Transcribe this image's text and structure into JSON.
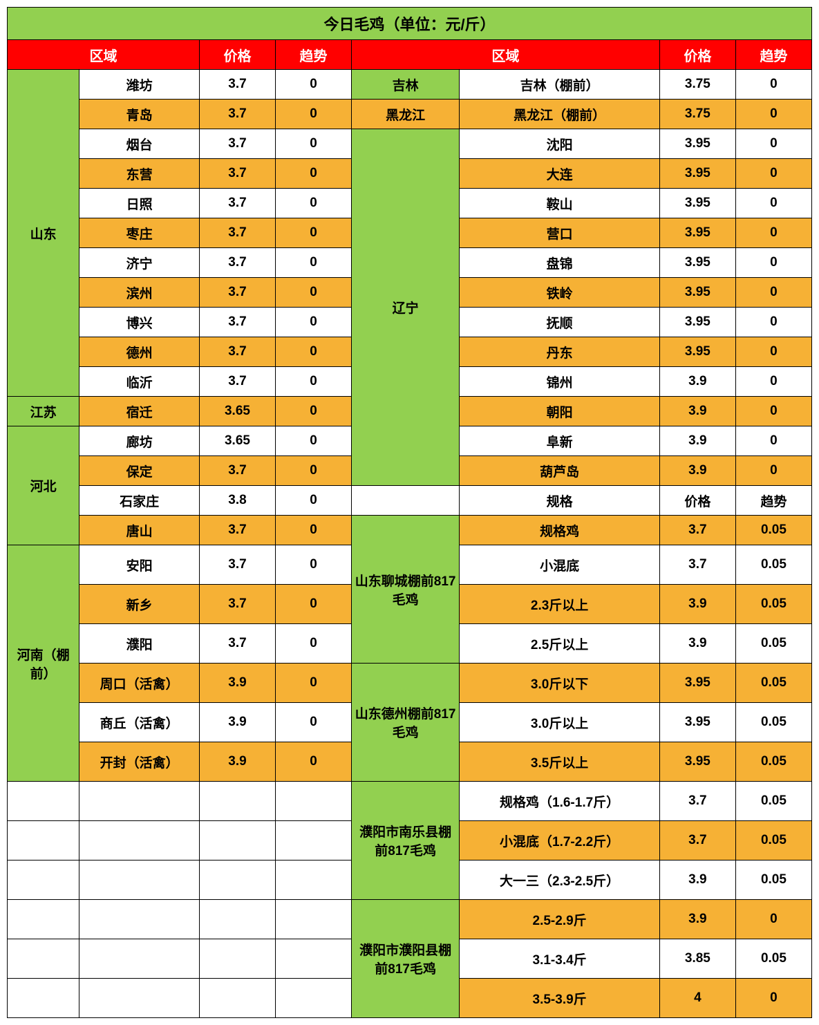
{
  "title": "今日毛鸡（单位：元/斤）",
  "headers": {
    "region": "区域",
    "price": "价格",
    "trend": "趋势",
    "spec": "规格"
  },
  "left_groups": [
    {
      "region": "山东",
      "rows": [
        {
          "city": "潍坊",
          "price": "3.7",
          "trend": "0",
          "shade": "white"
        },
        {
          "city": "青岛",
          "price": "3.7",
          "trend": "0",
          "shade": "orange"
        },
        {
          "city": "烟台",
          "price": "3.7",
          "trend": "0",
          "shade": "white"
        },
        {
          "city": "东营",
          "price": "3.7",
          "trend": "0",
          "shade": "orange"
        },
        {
          "city": "日照",
          "price": "3.7",
          "trend": "0",
          "shade": "white"
        },
        {
          "city": "枣庄",
          "price": "3.7",
          "trend": "0",
          "shade": "orange"
        },
        {
          "city": "济宁",
          "price": "3.7",
          "trend": "0",
          "shade": "white"
        },
        {
          "city": "滨州",
          "price": "3.7",
          "trend": "0",
          "shade": "orange"
        },
        {
          "city": "博兴",
          "price": "3.7",
          "trend": "0",
          "shade": "white"
        },
        {
          "city": "德州",
          "price": "3.7",
          "trend": "0",
          "shade": "orange"
        },
        {
          "city": "临沂",
          "price": "3.7",
          "trend": "0",
          "shade": "white"
        }
      ]
    },
    {
      "region": "江苏",
      "rows": [
        {
          "city": "宿迁",
          "price": "3.65",
          "trend": "0",
          "shade": "orange"
        }
      ]
    },
    {
      "region": "河北",
      "rows": [
        {
          "city": "廊坊",
          "price": "3.65",
          "trend": "0",
          "shade": "white"
        },
        {
          "city": "保定",
          "price": "3.7",
          "trend": "0",
          "shade": "orange"
        },
        {
          "city": "石家庄",
          "price": "3.8",
          "trend": "0",
          "shade": "white"
        },
        {
          "city": "唐山",
          "price": "3.7",
          "trend": "0",
          "shade": "orange"
        }
      ]
    },
    {
      "region": "河南（棚前）",
      "rows": [
        {
          "city": "安阳",
          "price": "3.7",
          "trend": "0",
          "shade": "white"
        },
        {
          "city": "新乡",
          "price": "3.7",
          "trend": "0",
          "shade": "orange"
        },
        {
          "city": "濮阳",
          "price": "3.7",
          "trend": "0",
          "shade": "white"
        },
        {
          "city": "周口（活禽）",
          "price": "3.9",
          "trend": "0",
          "shade": "orange"
        },
        {
          "city": "商丘（活禽）",
          "price": "3.9",
          "trend": "0",
          "shade": "white"
        },
        {
          "city": "开封（活禽）",
          "price": "3.9",
          "trend": "0",
          "shade": "orange"
        }
      ]
    }
  ],
  "right_top": [
    {
      "region": "吉林",
      "rows": [
        {
          "city": "吉林（棚前）",
          "price": "3.75",
          "trend": "0",
          "shade": "white"
        }
      ]
    },
    {
      "region": "黑龙江",
      "region_shade": "orange",
      "rows": [
        {
          "city": "黑龙江（棚前）",
          "price": "3.75",
          "trend": "0",
          "shade": "orange"
        }
      ]
    },
    {
      "region": "辽宁",
      "rows": [
        {
          "city": "沈阳",
          "price": "3.95",
          "trend": "0",
          "shade": "white"
        },
        {
          "city": "大连",
          "price": "3.95",
          "trend": "0",
          "shade": "orange"
        },
        {
          "city": "鞍山",
          "price": "3.95",
          "trend": "0",
          "shade": "white"
        },
        {
          "city": "营口",
          "price": "3.95",
          "trend": "0",
          "shade": "orange"
        },
        {
          "city": "盘锦",
          "price": "3.95",
          "trend": "0",
          "shade": "white"
        },
        {
          "city": "铁岭",
          "price": "3.95",
          "trend": "0",
          "shade": "orange"
        },
        {
          "city": "抚顺",
          "price": "3.95",
          "trend": "0",
          "shade": "white"
        },
        {
          "city": "丹东",
          "price": "3.95",
          "trend": "0",
          "shade": "orange"
        },
        {
          "city": "锦州",
          "price": "3.9",
          "trend": "0",
          "shade": "white"
        },
        {
          "city": "朝阳",
          "price": "3.9",
          "trend": "0",
          "shade": "orange"
        },
        {
          "city": "阜新",
          "price": "3.9",
          "trend": "0",
          "shade": "white"
        },
        {
          "city": "葫芦岛",
          "price": "3.9",
          "trend": "0",
          "shade": "orange"
        }
      ]
    }
  ],
  "right_spec_groups": [
    {
      "region": "山东聊城棚前817毛鸡",
      "rows": [
        {
          "city": "规格鸡",
          "price": "3.7",
          "trend": "0.05",
          "shade": "orange"
        },
        {
          "city": "小混底",
          "price": "3.7",
          "trend": "0.05",
          "shade": "white"
        },
        {
          "city": "2.3斤以上",
          "price": "3.9",
          "trend": "0.05",
          "shade": "orange"
        },
        {
          "city": "2.5斤以上",
          "price": "3.9",
          "trend": "0.05",
          "shade": "white"
        }
      ]
    },
    {
      "region": "山东德州棚前817毛鸡",
      "rows": [
        {
          "city": "3.0斤以下",
          "price": "3.95",
          "trend": "0.05",
          "shade": "orange"
        },
        {
          "city": "3.0斤以上",
          "price": "3.95",
          "trend": "0.05",
          "shade": "white"
        },
        {
          "city": "3.5斤以上",
          "price": "3.95",
          "trend": "0.05",
          "shade": "orange"
        }
      ]
    },
    {
      "region": "濮阳市南乐县棚前817毛鸡",
      "rows": [
        {
          "city": "规格鸡（1.6-1.7斤）",
          "price": "3.7",
          "trend": "0.05",
          "shade": "white"
        },
        {
          "city": "小混底（1.7-2.2斤）",
          "price": "3.7",
          "trend": "0.05",
          "shade": "orange"
        },
        {
          "city": "大一三（2.3-2.5斤）",
          "price": "3.9",
          "trend": "0.05",
          "shade": "white"
        }
      ]
    },
    {
      "region": "濮阳市濮阳县棚前817毛鸡",
      "rows": [
        {
          "city": "2.5-2.9斤",
          "price": "3.9",
          "trend": "0",
          "shade": "orange"
        },
        {
          "city": "3.1-3.4斤",
          "price": "3.85",
          "trend": "0.05",
          "shade": "white"
        },
        {
          "city": "3.5-3.9斤",
          "price": "4",
          "trend": "0",
          "shade": "orange"
        }
      ]
    }
  ]
}
